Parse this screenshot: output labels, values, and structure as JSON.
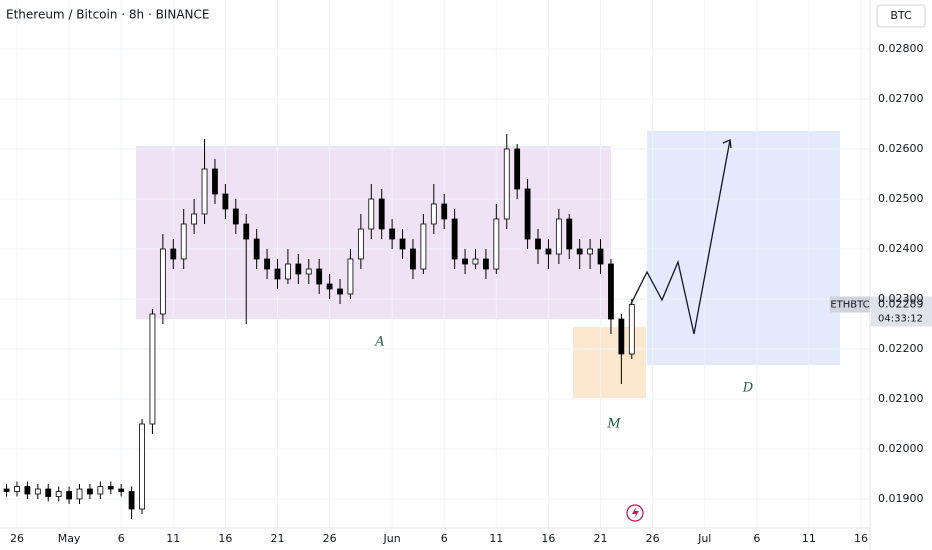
{
  "chart_data": {
    "type": "candlestick",
    "title": "Ethereum / Bitcoin · 8h · BINANCE",
    "currency": "BTC",
    "symbol": "ETHBTC",
    "countdown": "04:33:12",
    "annotations": [
      "A",
      "M",
      "D"
    ],
    "x": [
      -1,
      0,
      1,
      2,
      3,
      4,
      5,
      6,
      7,
      8,
      9,
      10,
      11,
      12,
      13,
      14,
      15,
      16,
      17,
      18,
      19,
      20,
      21,
      22,
      23,
      24,
      25,
      26,
      27,
      28,
      29,
      30,
      31,
      32,
      33,
      34,
      35,
      36,
      37,
      38,
      39,
      40,
      41,
      42,
      43,
      44,
      45,
      46,
      47,
      48,
      49,
      50,
      51,
      52,
      53,
      54,
      55,
      56,
      57,
      58,
      59
    ],
    "open": [
      0.0192,
      0.01915,
      0.01925,
      0.0191,
      0.0192,
      0.01905,
      0.01915,
      0.019,
      0.0192,
      0.0191,
      0.01925,
      0.0192,
      0.01915,
      0.0188,
      0.0205,
      0.0227,
      0.024,
      0.0238,
      0.0245,
      0.0247,
      0.0256,
      0.0251,
      0.0248,
      0.0245,
      0.0242,
      0.0238,
      0.0236,
      0.0234,
      0.0237,
      0.0235,
      0.0236,
      0.0233,
      0.0232,
      0.0231,
      0.0238,
      0.0244,
      0.025,
      0.0244,
      0.0242,
      0.024,
      0.0236,
      0.0245,
      0.0249,
      0.0246,
      0.0238,
      0.0237,
      0.0238,
      0.0236,
      0.0246,
      0.026,
      0.0252,
      0.0242,
      0.024,
      0.0239,
      0.0246,
      0.024,
      0.0239,
      0.024,
      0.0237,
      0.0226,
      0.0219
    ],
    "high": [
      0.0193,
      0.01935,
      0.01935,
      0.0193,
      0.0193,
      0.01925,
      0.01925,
      0.0193,
      0.0193,
      0.01935,
      0.01935,
      0.0193,
      0.01925,
      0.0206,
      0.0228,
      0.0243,
      0.0242,
      0.0248,
      0.025,
      0.0262,
      0.0258,
      0.0253,
      0.025,
      0.0247,
      0.0244,
      0.024,
      0.0238,
      0.024,
      0.0239,
      0.0238,
      0.0238,
      0.0235,
      0.0234,
      0.024,
      0.0247,
      0.0253,
      0.0252,
      0.0246,
      0.0244,
      0.0242,
      0.0247,
      0.0253,
      0.0251,
      0.0248,
      0.024,
      0.024,
      0.024,
      0.0249,
      0.0263,
      0.0261,
      0.0254,
      0.0244,
      0.0242,
      0.0248,
      0.0247,
      0.0242,
      0.0242,
      0.0242,
      0.0238,
      0.0227,
      0.023
    ],
    "low": [
      0.01905,
      0.01905,
      0.019,
      0.019,
      0.01895,
      0.01895,
      0.0189,
      0.0189,
      0.019,
      0.019,
      0.0191,
      0.01905,
      0.0186,
      0.0187,
      0.0203,
      0.0225,
      0.0236,
      0.0236,
      0.0243,
      0.0245,
      0.0249,
      0.0246,
      0.0243,
      0.0225,
      0.0236,
      0.0234,
      0.0232,
      0.0233,
      0.0233,
      0.0233,
      0.0231,
      0.023,
      0.0229,
      0.023,
      0.0236,
      0.0242,
      0.0242,
      0.024,
      0.0238,
      0.0234,
      0.0235,
      0.0243,
      0.0244,
      0.0236,
      0.0235,
      0.0236,
      0.0234,
      0.0235,
      0.0244,
      0.025,
      0.024,
      0.0237,
      0.0236,
      0.0237,
      0.0238,
      0.0236,
      0.0236,
      0.0235,
      0.0223,
      0.0213,
      0.0218
    ],
    "close": [
      0.01915,
      0.01925,
      0.0191,
      0.0192,
      0.01905,
      0.01915,
      0.019,
      0.0192,
      0.0191,
      0.01925,
      0.0192,
      0.01915,
      0.0188,
      0.0205,
      0.0227,
      0.024,
      0.0238,
      0.0245,
      0.0247,
      0.0256,
      0.0251,
      0.0248,
      0.0245,
      0.0242,
      0.0238,
      0.0236,
      0.0234,
      0.0237,
      0.0235,
      0.0236,
      0.0233,
      0.0232,
      0.0231,
      0.0238,
      0.0244,
      0.025,
      0.0244,
      0.0242,
      0.024,
      0.0236,
      0.0245,
      0.0249,
      0.0246,
      0.0238,
      0.0237,
      0.0238,
      0.0236,
      0.0246,
      0.026,
      0.0252,
      0.0242,
      0.024,
      0.0239,
      0.0246,
      0.024,
      0.0239,
      0.024,
      0.0237,
      0.0226,
      0.0219,
      0.02289
    ],
    "up_color": "#ffffff",
    "down_color": "#000000",
    "grid": true,
    "xlim": [
      -1.63,
      81.86
    ],
    "xticks": [
      {
        "value": 0,
        "label": "26"
      },
      {
        "value": 5,
        "label": "May"
      },
      {
        "value": 10,
        "label": "6"
      },
      {
        "value": 15,
        "label": "11"
      },
      {
        "value": 20,
        "label": "16"
      },
      {
        "value": 25,
        "label": "21"
      },
      {
        "value": 30,
        "label": "26"
      },
      {
        "value": 36,
        "label": "Jun"
      },
      {
        "value": 41,
        "label": "6"
      },
      {
        "value": 46,
        "label": "11"
      },
      {
        "value": 51,
        "label": "16"
      },
      {
        "value": 56,
        "label": "21"
      },
      {
        "value": 61,
        "label": "26"
      },
      {
        "value": 66,
        "label": "Jul"
      },
      {
        "value": 71,
        "label": "6"
      },
      {
        "value": 76,
        "label": "11"
      },
      {
        "value": 81,
        "label": "16"
      }
    ],
    "ylim": [
      0.01842,
      0.02898
    ],
    "yticks": [
      {
        "value": 0.019,
        "label": "0.01900"
      },
      {
        "value": 0.02,
        "label": "0.02000"
      },
      {
        "value": 0.021,
        "label": "0.02100"
      },
      {
        "value": 0.022,
        "label": "0.02200"
      },
      {
        "value": 0.023,
        "label": "0.02300"
      },
      {
        "value": 0.024,
        "label": "0.02400"
      },
      {
        "value": 0.025,
        "label": "0.02500"
      },
      {
        "value": 0.026,
        "label": "0.02600"
      },
      {
        "value": 0.027,
        "label": "0.02700"
      },
      {
        "value": 0.028,
        "label": "0.02800"
      }
    ]
  }
}
